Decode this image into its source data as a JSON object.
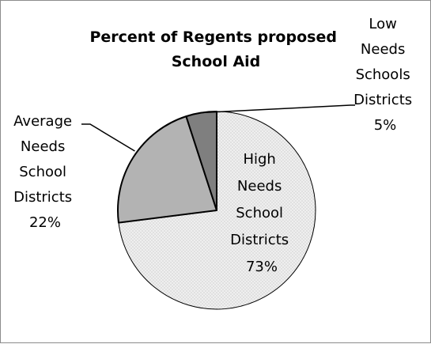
{
  "chart_data": {
    "type": "pie",
    "title_lines": [
      "Percent of Regents proposed",
      "School Aid"
    ],
    "slices": [
      {
        "label_lines": [
          "High",
          "Needs",
          "School",
          "Districts"
        ],
        "value": 73,
        "value_label": "73%",
        "color": "#efefef",
        "pattern": "dotted"
      },
      {
        "label_lines": [
          "Average",
          "Needs",
          "School",
          "Districts"
        ],
        "value": 22,
        "value_label": "22%",
        "color": "#b3b3b3"
      },
      {
        "label_lines": [
          "Low",
          "Needs",
          "Schools",
          "Districts"
        ],
        "value": 5,
        "value_label": "5%",
        "color": "#7f7f7f"
      }
    ],
    "legend": "none"
  }
}
